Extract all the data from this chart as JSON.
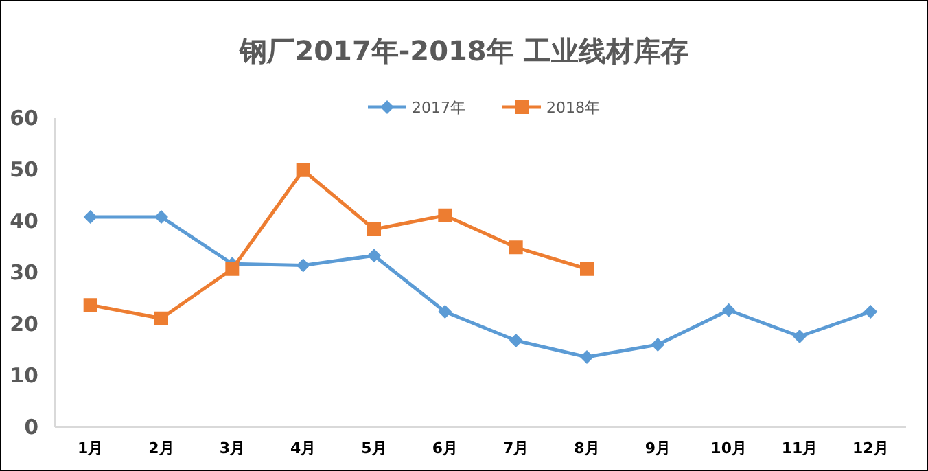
{
  "chart_data": {
    "type": "line",
    "title": "钢厂2017年-2018年 工业线材库存",
    "categories": [
      "1月",
      "2月",
      "3月",
      "4月",
      "5月",
      "6月",
      "7月",
      "8月",
      "9月",
      "10月",
      "11月",
      "12月"
    ],
    "series": [
      {
        "name": "2017年",
        "color": "#5b9bd5",
        "marker": "diamond",
        "values": [
          40.8,
          40.8,
          31.7,
          31.4,
          33.3,
          22.4,
          16.8,
          13.6,
          16,
          22.7,
          17.6,
          22.4
        ]
      },
      {
        "name": "2018年",
        "color": "#ed7d31",
        "marker": "square",
        "values": [
          23.7,
          21.1,
          30.7,
          49.9,
          38.4,
          41.1,
          34.9,
          30.7,
          null,
          null,
          null,
          null
        ]
      }
    ],
    "ylim": [
      0,
      60
    ],
    "yticks": [
      0,
      10,
      20,
      30,
      40,
      50,
      60
    ],
    "grid": false,
    "legend": "top"
  }
}
